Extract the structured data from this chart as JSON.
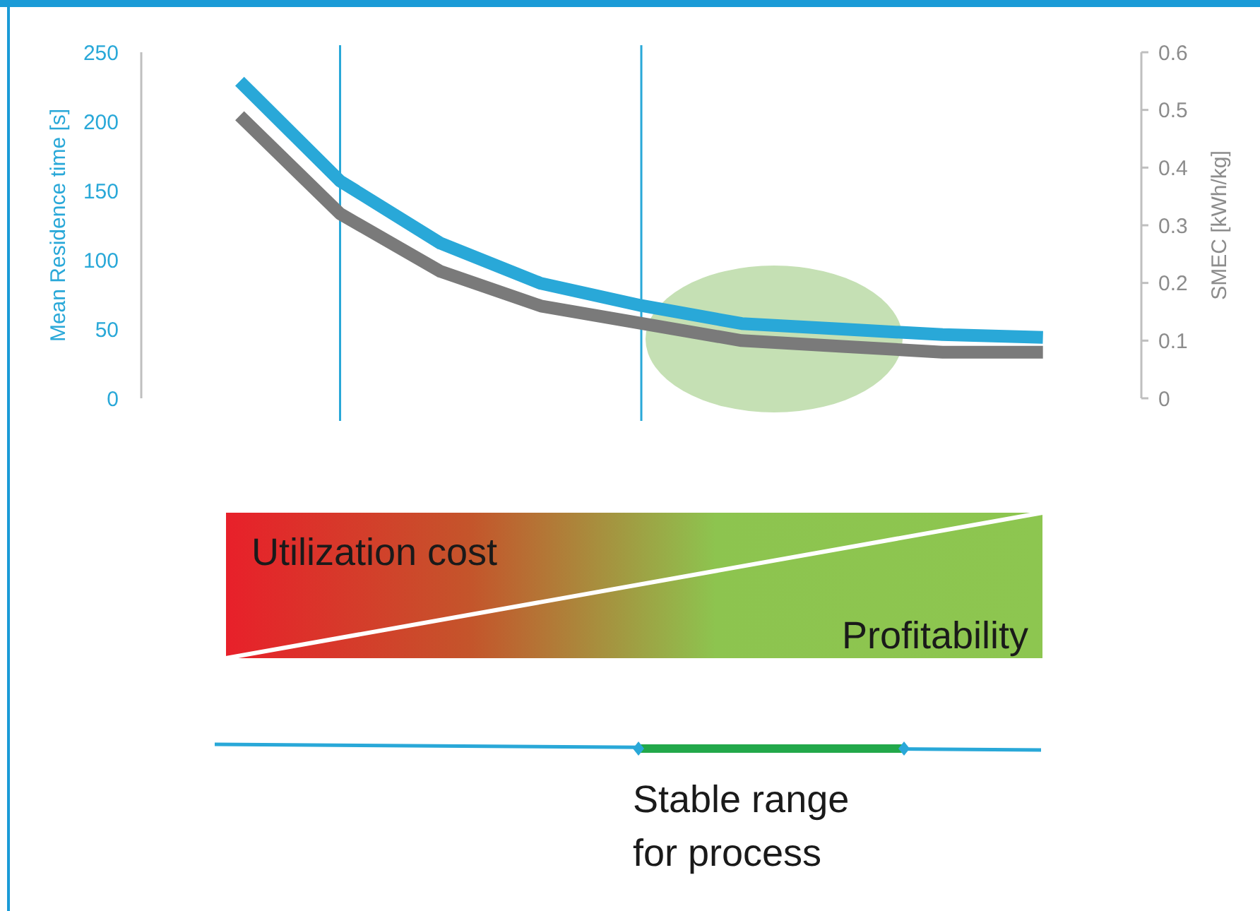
{
  "chart_data": {
    "type": "line",
    "ylabel": "Mean Residence time [s]",
    "y2label": "SMEC [kWh/kg]",
    "categories": [
      null,
      null,
      null,
      null,
      null,
      null,
      null,
      null,
      null
    ],
    "ylim": [
      0,
      250
    ],
    "yticks": [
      0,
      50,
      100,
      150,
      200,
      250
    ],
    "y2lim": [
      0,
      0.6
    ],
    "y2ticks": [
      0,
      0.1,
      0.2,
      0.3,
      0.4,
      0.5,
      0.6
    ],
    "series": [
      {
        "color": "#29a8d8",
        "values": [
          229,
          157,
          112,
          83,
          67,
          54,
          50,
          46,
          44
        ]
      },
      {
        "color": "#7a7a7a",
        "axis": "y2",
        "values": [
          0.49,
          0.32,
          0.22,
          0.16,
          0.13,
          0.1,
          0.09,
          0.08,
          0.08
        ]
      }
    ],
    "annotations": [
      "Utilization cost",
      "Profitability",
      "Stable range\nfor process"
    ],
    "grid": false,
    "legend": false
  }
}
